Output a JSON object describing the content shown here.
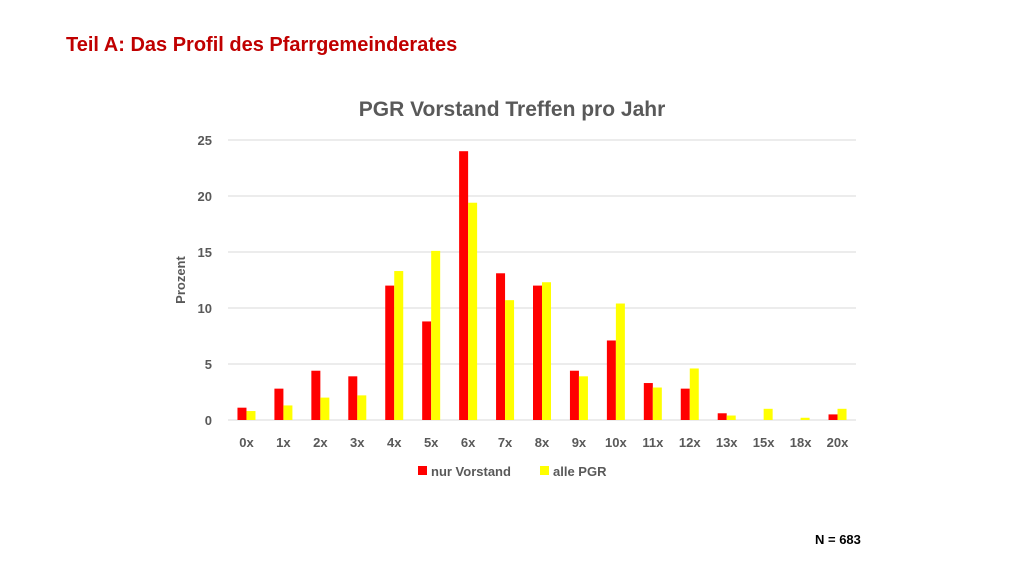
{
  "slide": {
    "title": "Teil A: Das Profil des Pfarrgemeinderates",
    "footnote": "N = 683"
  },
  "colors": {
    "title": "#c00000",
    "series1": "#ff0000",
    "series2": "#ffff00",
    "grid": "#d9d9d9",
    "text": "#595959"
  },
  "chart_data": {
    "type": "bar",
    "title": "PGR Vorstand Treffen pro Jahr",
    "xlabel": "",
    "ylabel": "Prozent",
    "ylim": [
      0,
      25
    ],
    "yticks": [
      0,
      5,
      10,
      15,
      20,
      25
    ],
    "grid": true,
    "legend_position": "bottom",
    "categories": [
      "0x",
      "1x",
      "2x",
      "3x",
      "4x",
      "5x",
      "6x",
      "7x",
      "8x",
      "9x",
      "10x",
      "11x",
      "12x",
      "13x",
      "15x",
      "18x",
      "20x"
    ],
    "series": [
      {
        "name": "nur Vorstand",
        "color": "#ff0000",
        "values": [
          1.1,
          2.8,
          4.4,
          3.9,
          12.0,
          8.8,
          24.0,
          13.1,
          12.0,
          4.4,
          7.1,
          3.3,
          2.8,
          0.6,
          0.0,
          0.0,
          0.5
        ]
      },
      {
        "name": "alle PGR",
        "color": "#ffff00",
        "values": [
          0.8,
          1.3,
          2.0,
          2.2,
          13.3,
          15.1,
          19.4,
          10.7,
          12.3,
          3.9,
          10.4,
          2.9,
          4.6,
          0.4,
          1.0,
          0.2,
          1.0
        ]
      }
    ]
  }
}
